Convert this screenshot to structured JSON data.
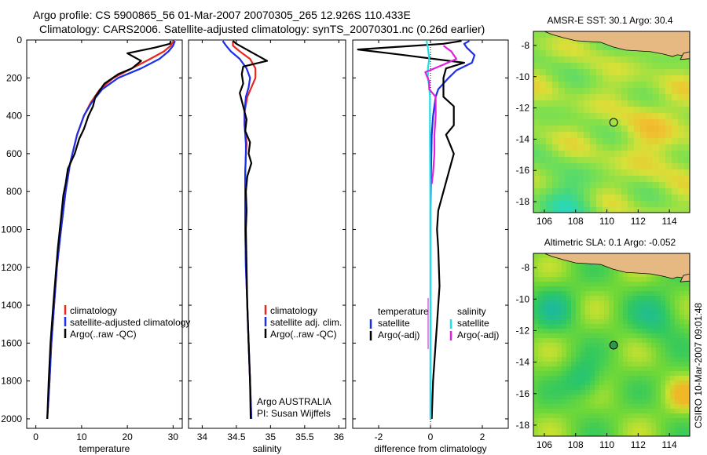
{
  "header": {
    "line1": "Argo profile: CS 5900865_56 01-Mar-2007 20070305_265 12.926S 110.433E",
    "line2": "Climatology: CARS2006. Satellite-adjusted climatology: synTS_20070301.nc (0.26d earlier)"
  },
  "side_label": "CSIRO 10-Mar-2007 09:01:48",
  "colors": {
    "climatology": "#e8261e",
    "satellite": "#1c2fe8",
    "argo": "#000000",
    "sal_satellite": "#22e0e8",
    "sal_argo": "#e020e0",
    "land": "#e6b882"
  },
  "chart_data": [
    {
      "type": "line",
      "id": "temperature",
      "xlabel": "temperature",
      "ylabel": "",
      "xlim": [
        -2,
        32
      ],
      "ylim": [
        2050,
        0
      ],
      "y_inverted": true,
      "xticks": [
        0,
        10,
        20,
        30
      ],
      "yticks": [
        0,
        200,
        400,
        600,
        800,
        1000,
        1200,
        1400,
        1600,
        1800,
        2000
      ],
      "legend": {
        "placement": "lower-right",
        "entries": [
          "climatology",
          "satellite-adjusted climatology",
          "Argo(..raw -QC)"
        ]
      },
      "series": [
        {
          "name": "climatology",
          "color": "climatology",
          "points": [
            [
              30.1,
              5
            ],
            [
              29.5,
              30
            ],
            [
              28,
              60
            ],
            [
              25,
              100
            ],
            [
              21,
              150
            ],
            [
              17,
              200
            ],
            [
              14,
              260
            ],
            [
              12,
              330
            ],
            [
              10.5,
              400
            ],
            [
              9,
              500
            ],
            [
              7.5,
              650
            ],
            [
              6.5,
              800
            ],
            [
              5.5,
              1000
            ],
            [
              4.6,
              1200
            ],
            [
              4,
              1400
            ],
            [
              3.4,
              1600
            ],
            [
              3,
              1800
            ],
            [
              2.5,
              2000
            ]
          ]
        },
        {
          "name": "satellite-adjusted climatology",
          "color": "satellite",
          "points": [
            [
              30.4,
              5
            ],
            [
              30,
              30
            ],
            [
              29,
              60
            ],
            [
              27,
              100
            ],
            [
              23,
              150
            ],
            [
              18,
              200
            ],
            [
              14.5,
              260
            ],
            [
              12.2,
              330
            ],
            [
              10.5,
              400
            ],
            [
              9,
              500
            ],
            [
              7.5,
              650
            ],
            [
              6.5,
              800
            ],
            [
              5.5,
              1000
            ],
            [
              4.6,
              1200
            ],
            [
              4,
              1400
            ],
            [
              3.4,
              1600
            ],
            [
              3,
              1800
            ],
            [
              2.5,
              2000
            ]
          ]
        },
        {
          "name": "Argo(..raw -QC)",
          "color": "argo",
          "points": [
            [
              29.5,
              5
            ],
            [
              29.3,
              20
            ],
            [
              26,
              40
            ],
            [
              20,
              70
            ],
            [
              23,
              110
            ],
            [
              21,
              150
            ],
            [
              18,
              180
            ],
            [
              15,
              230
            ],
            [
              13,
              300
            ],
            [
              12.5,
              350
            ],
            [
              11.5,
              400
            ],
            [
              10.5,
              470
            ],
            [
              9.5,
              520
            ],
            [
              8.5,
              600
            ],
            [
              7,
              680
            ],
            [
              6.5,
              760
            ],
            [
              6,
              820
            ],
            [
              5.5,
              940
            ],
            [
              4.8,
              1100
            ],
            [
              4.3,
              1250
            ],
            [
              3.8,
              1400
            ],
            [
              3.2,
              1600
            ],
            [
              2.8,
              1800
            ],
            [
              2.5,
              2000
            ]
          ]
        }
      ]
    },
    {
      "type": "line",
      "id": "salinity",
      "xlabel": "salinity",
      "ylabel": "",
      "xlim": [
        33.8,
        36.1
      ],
      "ylim": [
        2050,
        0
      ],
      "y_inverted": true,
      "xticks": [
        34,
        34.5,
        35,
        35.5,
        36
      ],
      "yticks": [
        0,
        200,
        400,
        600,
        800,
        1000,
        1200,
        1400,
        1600,
        1800,
        2000
      ],
      "legend": {
        "placement": "lower-right",
        "entries": [
          "climatology",
          "satellite adj. clim.",
          "Argo(..raw -QC)"
        ]
      },
      "annotation": [
        "Argo AUSTRALIA",
        "PI: Susan Wijffels"
      ],
      "series": [
        {
          "name": "climatology",
          "color": "climatology",
          "points": [
            [
              34.45,
              5
            ],
            [
              34.45,
              30
            ],
            [
              34.55,
              60
            ],
            [
              34.7,
              100
            ],
            [
              34.78,
              150
            ],
            [
              34.78,
              200
            ],
            [
              34.72,
              250
            ],
            [
              34.66,
              300
            ],
            [
              34.62,
              380
            ],
            [
              34.62,
              450
            ],
            [
              34.64,
              500
            ],
            [
              34.65,
              550
            ],
            [
              34.64,
              600
            ],
            [
              34.63,
              700
            ],
            [
              34.63,
              800
            ],
            [
              34.63,
              1000
            ],
            [
              34.64,
              1200
            ],
            [
              34.66,
              1400
            ],
            [
              34.68,
              1600
            ],
            [
              34.7,
              1800
            ],
            [
              34.72,
              2000
            ]
          ]
        },
        {
          "name": "satellite adj. clim.",
          "color": "satellite",
          "points": [
            [
              34.3,
              5
            ],
            [
              34.35,
              30
            ],
            [
              34.42,
              60
            ],
            [
              34.55,
              100
            ],
            [
              34.65,
              150
            ],
            [
              34.7,
              200
            ],
            [
              34.68,
              250
            ],
            [
              34.64,
              300
            ],
            [
              34.62,
              380
            ],
            [
              34.62,
              450
            ],
            [
              34.63,
              500
            ],
            [
              34.64,
              550
            ],
            [
              34.64,
              600
            ],
            [
              34.63,
              700
            ],
            [
              34.63,
              800
            ],
            [
              34.63,
              1000
            ],
            [
              34.64,
              1200
            ],
            [
              34.66,
              1400
            ],
            [
              34.68,
              1600
            ],
            [
              34.7,
              1800
            ],
            [
              34.72,
              2000
            ]
          ]
        },
        {
          "name": "Argo(..raw -QC)",
          "color": "argo",
          "points": [
            [
              34.45,
              5
            ],
            [
              34.5,
              20
            ],
            [
              34.6,
              40
            ],
            [
              34.75,
              70
            ],
            [
              34.95,
              110
            ],
            [
              34.6,
              140
            ],
            [
              34.58,
              180
            ],
            [
              34.6,
              230
            ],
            [
              34.55,
              280
            ],
            [
              34.6,
              350
            ],
            [
              34.65,
              420
            ],
            [
              34.63,
              480
            ],
            [
              34.7,
              540
            ],
            [
              34.68,
              600
            ],
            [
              34.72,
              650
            ],
            [
              34.66,
              720
            ],
            [
              34.64,
              800
            ],
            [
              34.65,
              900
            ],
            [
              34.64,
              1000
            ],
            [
              34.65,
              1200
            ],
            [
              34.66,
              1400
            ],
            [
              34.68,
              1600
            ],
            [
              34.7,
              1800
            ],
            [
              34.71,
              2000
            ]
          ]
        }
      ]
    },
    {
      "type": "line",
      "id": "difference",
      "xlabel": "difference from climatology",
      "ylabel": "",
      "xlim": [
        -3,
        3
      ],
      "ylim": [
        2050,
        0
      ],
      "y_inverted": true,
      "xticks": [
        -2,
        0,
        2
      ],
      "yticks": [
        0,
        200,
        400,
        600,
        800,
        1000,
        1200,
        1400,
        1600,
        1800,
        2000
      ],
      "legend": {
        "placement": "lower-center",
        "columns": [
          {
            "heading": "temperature",
            "entries": [
              "satellite",
              "Argo(-adj)"
            ]
          },
          {
            "heading": "salinity",
            "entries": [
              "satellite",
              "Argo(-adj)"
            ]
          }
        ]
      },
      "series": [
        {
          "name": "temperature satellite",
          "color": "satellite",
          "points": [
            [
              1.5,
              5
            ],
            [
              1.3,
              20
            ],
            [
              1.4,
              40
            ],
            [
              1.7,
              80
            ],
            [
              1.6,
              120
            ],
            [
              1.0,
              160
            ],
            [
              0.7,
              200
            ],
            [
              0.3,
              260
            ],
            [
              0.2,
              300
            ],
            [
              0.1,
              400
            ],
            [
              0.05,
              500
            ],
            [
              0.02,
              700
            ],
            [
              0,
              900
            ],
            [
              0,
              1200
            ],
            [
              0,
              1600
            ],
            [
              0,
              2000
            ]
          ]
        },
        {
          "name": "temperature Argo(-adj)",
          "color": "argo",
          "points": [
            [
              1.2,
              5
            ],
            [
              0.5,
              20
            ],
            [
              -2.8,
              50
            ],
            [
              -1.0,
              80
            ],
            [
              1.3,
              120
            ],
            [
              0.6,
              150
            ],
            [
              0.5,
              200
            ],
            [
              0.5,
              300
            ],
            [
              0.9,
              350
            ],
            [
              0.9,
              450
            ],
            [
              0.6,
              500
            ],
            [
              0.9,
              600
            ],
            [
              0.7,
              700
            ],
            [
              0.5,
              800
            ],
            [
              0.3,
              900
            ],
            [
              0.25,
              1000
            ],
            [
              0.3,
              1100
            ],
            [
              0.35,
              1300
            ],
            [
              0.25,
              1500
            ],
            [
              0.2,
              1600
            ],
            [
              0.1,
              1800
            ],
            [
              0.05,
              2000
            ]
          ]
        },
        {
          "name": "salinity satellite",
          "color": "sal_satellite",
          "points": [
            [
              -0.15,
              5
            ],
            [
              -0.1,
              40
            ],
            [
              -0.05,
              100
            ],
            [
              -0.1,
              150
            ],
            [
              -0.1,
              200
            ],
            [
              -0.05,
              250
            ],
            [
              -0.02,
              300
            ],
            [
              -0.02,
              500
            ],
            [
              -0.01,
              800
            ],
            [
              0,
              1200
            ],
            [
              0,
              1600
            ],
            [
              0,
              2000
            ]
          ]
        },
        {
          "name": "salinity Argo(-adj)",
          "color": "sal_argo",
          "points": [
            [
              0.5,
              30
            ],
            [
              0.8,
              60
            ],
            [
              1.0,
              100
            ],
            [
              0.5,
              130
            ],
            [
              -0.2,
              170
            ],
            [
              -0.05,
              220
            ],
            [
              -0.05,
              260
            ],
            [
              0.2,
              300
            ],
            [
              0.2,
              400
            ],
            [
              0.15,
              500
            ],
            [
              0.15,
              600
            ],
            [
              0.1,
              700
            ],
            [
              0.05,
              760
            ]
          ]
        }
      ]
    },
    {
      "type": "heatmap",
      "id": "sst_map",
      "title": "AMSR-E SST: 30.1 Argo: 30.4",
      "xlim": [
        105.3,
        115.3
      ],
      "ylim": [
        -18.7,
        -7.1
      ],
      "xticks": [
        106,
        108,
        110,
        112,
        114
      ],
      "yticks": [
        -8,
        -10,
        -12,
        -14,
        -16,
        -18
      ],
      "marker": {
        "lon": 110.433,
        "lat": -12.926,
        "style": "open-circle"
      }
    },
    {
      "type": "heatmap",
      "id": "sla_map",
      "title": "Altimetric SLA: 0.1 Argo: -0.052",
      "xlim": [
        105.3,
        115.3
      ],
      "ylim": [
        -18.7,
        -7.1
      ],
      "xticks": [
        106,
        108,
        110,
        112,
        114
      ],
      "yticks": [
        -8,
        -10,
        -12,
        -14,
        -16,
        -18
      ],
      "marker": {
        "lon": 110.433,
        "lat": -12.926,
        "style": "filled-circle"
      }
    }
  ]
}
